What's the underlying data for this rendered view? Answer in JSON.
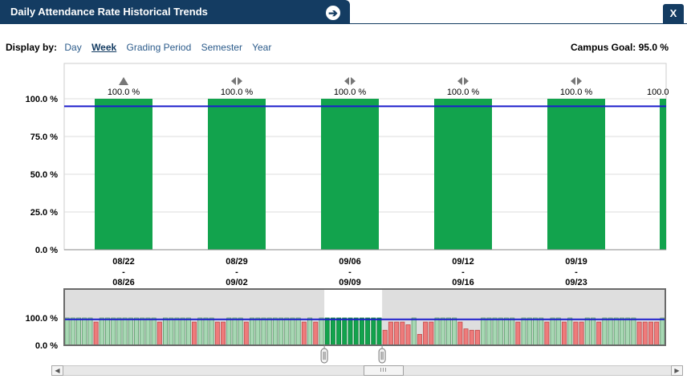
{
  "header": {
    "title": "Daily Attendance Rate Historical Trends",
    "open_icon": "arrow-right-circle-icon",
    "close_label": "X"
  },
  "display_by": {
    "label": "Display by:",
    "options": [
      "Day",
      "Week",
      "Grading Period",
      "Semester",
      "Year"
    ],
    "selected": "Week"
  },
  "campus_goal_text": "Campus Goal: 95.0 %",
  "navigator": {
    "thumb_label": "III",
    "left_arrow": "◀",
    "right_arrow": "▶"
  },
  "colors": {
    "bar": "#12a34d",
    "goal_line": "#1c1ccc",
    "below_goal": "#ee7b7b",
    "title_bg": "#143c62"
  },
  "chart_data": {
    "type": "bar",
    "categories": [
      [
        "08/22",
        "-",
        "08/26"
      ],
      [
        "08/29",
        "-",
        "09/02"
      ],
      [
        "09/06",
        "-",
        "09/09"
      ],
      [
        "09/12",
        "-",
        "09/16"
      ],
      [
        "09/19",
        "-",
        "09/23"
      ]
    ],
    "values": [
      100.0,
      100.0,
      100.0,
      100.0,
      100.0
    ],
    "data_labels": [
      "100.0 %",
      "100.0 %",
      "100.0 %",
      "100.0 %",
      "100.0 %"
    ],
    "trend_markers": [
      "up",
      "flat",
      "flat",
      "flat",
      "flat"
    ],
    "partial_next": {
      "value": 100.0,
      "label": "100.0"
    },
    "goal": 95.0,
    "ylim": [
      0,
      100
    ],
    "yticks": [
      "0.0 %",
      "25.0 %",
      "50.0 %",
      "75.0 %",
      "100.0 %"
    ],
    "grid": true,
    "overview": {
      "type": "bar",
      "ylim": [
        0,
        100
      ],
      "yticks": [
        "0.0 %",
        "100.0 %"
      ],
      "values": [
        100,
        100,
        100,
        100,
        100,
        85,
        100,
        100,
        100,
        100,
        100,
        100,
        100,
        100,
        100,
        100,
        85,
        100,
        100,
        100,
        100,
        100,
        85,
        100,
        100,
        100,
        85,
        85,
        100,
        100,
        100,
        85,
        100,
        100,
        100,
        100,
        100,
        100,
        100,
        100,
        100,
        85,
        100,
        85,
        100,
        100,
        100,
        100,
        100,
        100,
        100,
        100,
        100,
        100,
        100,
        55,
        85,
        85,
        85,
        75,
        100,
        40,
        85,
        85,
        100,
        100,
        100,
        100,
        85,
        60,
        55,
        55,
        100,
        100,
        100,
        100,
        100,
        100,
        85,
        100,
        100,
        100,
        100,
        85,
        100,
        100,
        85,
        100,
        85,
        85,
        100,
        100,
        85,
        100,
        100,
        100,
        100,
        100,
        100,
        85,
        85,
        85,
        85,
        100
      ],
      "window_start": 45,
      "window_count": 10
    }
  }
}
